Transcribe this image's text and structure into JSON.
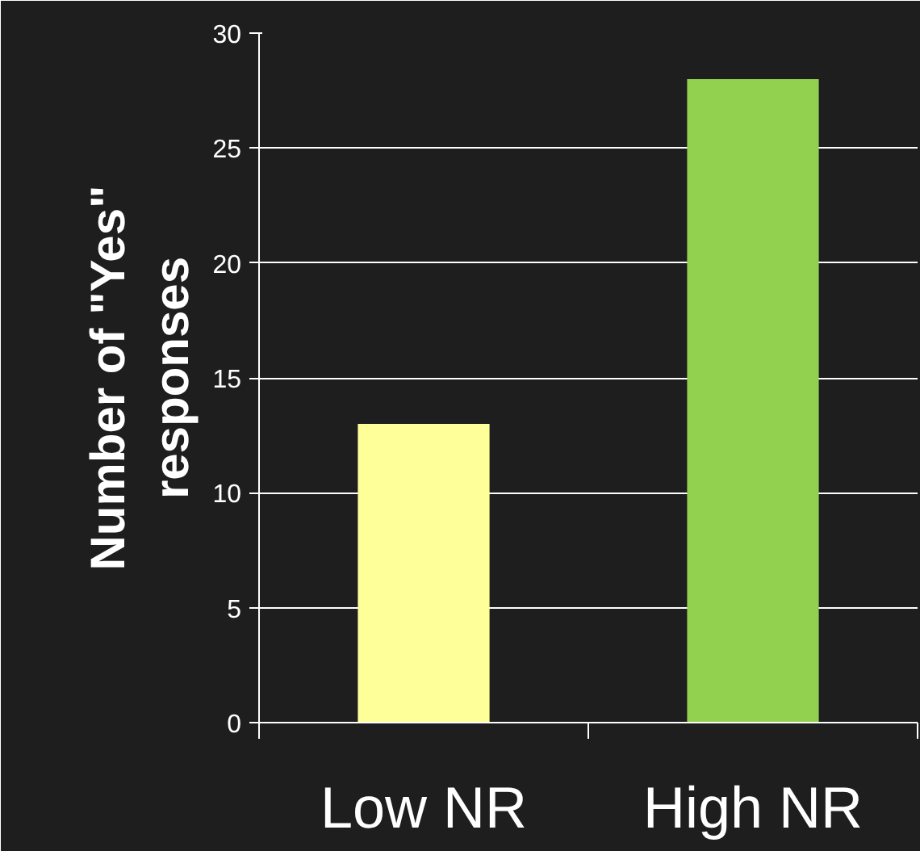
{
  "chart_data": {
    "type": "bar",
    "ylabel": "Number of \"Yes\"\nresponses",
    "categories": [
      "Low NR",
      "High NR"
    ],
    "values": [
      13,
      28
    ],
    "colors": [
      "#ffff99",
      "#92d050"
    ],
    "ylim": [
      0,
      30
    ],
    "yticks": [
      0,
      5,
      10,
      15,
      20,
      25,
      30
    ],
    "grid": "y"
  }
}
